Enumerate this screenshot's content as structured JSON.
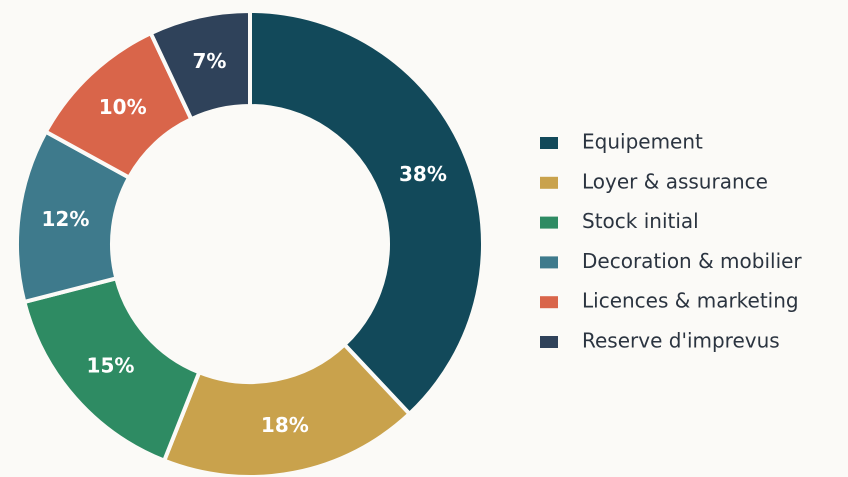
{
  "chart_data": {
    "type": "donut",
    "categories": [
      "Equipement",
      "Loyer & assurance",
      "Stock initial",
      "Decoration & mobilier",
      "Licences & marketing",
      "Reserve d'imprevus"
    ],
    "values": [
      38,
      18,
      15,
      12,
      10,
      7
    ],
    "value_labels": [
      "38%",
      "18%",
      "15%",
      "12%",
      "10%",
      "7%"
    ],
    "colors": [
      "#12495a",
      "#c9a24c",
      "#2e8b63",
      "#3e7a8c",
      "#d9654a",
      "#2f425a"
    ],
    "legend": "right"
  }
}
